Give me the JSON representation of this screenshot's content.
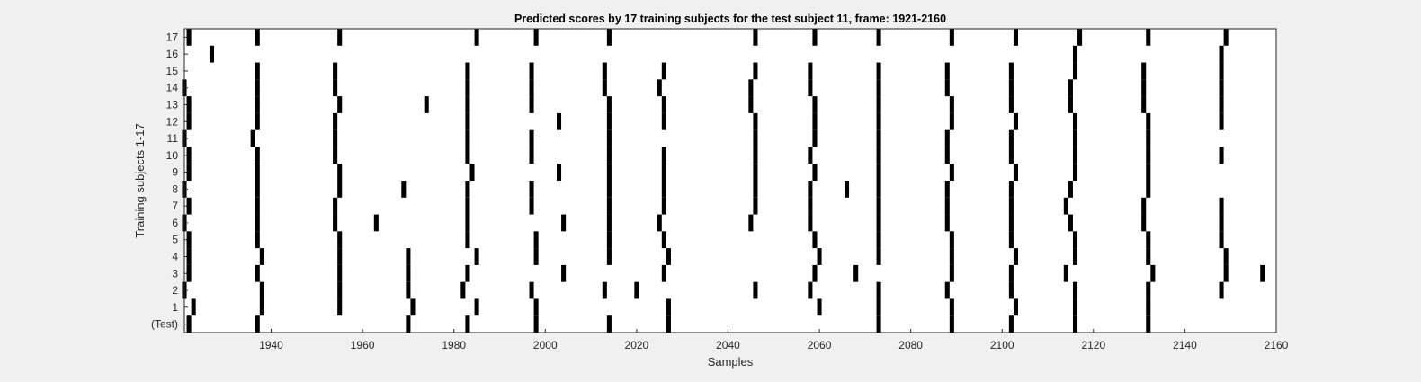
{
  "chart_data": {
    "type": "raster",
    "title": "Predicted scores by 17 training subjects for the test subject 11, frame: 1921-2160",
    "xlabel": "Samples",
    "ylabel": "Training subjects 1-17",
    "xlim": [
      1921,
      2160
    ],
    "xticks": [
      1940,
      1960,
      1980,
      2000,
      2020,
      2040,
      2060,
      2080,
      2100,
      2120,
      2140,
      2160
    ],
    "yticklabels": [
      "(Test)",
      "1",
      "2",
      "3",
      "4",
      "5",
      "6",
      "7",
      "8",
      "9",
      "10",
      "11",
      "12",
      "13",
      "14",
      "15",
      "16",
      "17"
    ],
    "bar_color": "#000000",
    "grid": false,
    "rows": [
      {
        "label": "(Test)",
        "events": [
          1922,
          1937,
          1970,
          1983,
          1998,
          2014,
          2027,
          2073,
          2089,
          2102,
          2116,
          2132
        ]
      },
      {
        "label": "1",
        "events": [
          1923,
          1938,
          1955,
          1971,
          1985,
          1998,
          2027,
          2060,
          2073,
          2089,
          2103,
          2116,
          2132
        ]
      },
      {
        "label": "2",
        "events": [
          1921,
          1938,
          1955,
          1970,
          1982,
          1997,
          2013,
          2020,
          2046,
          2058,
          2073,
          2088,
          2102,
          2116,
          2132,
          2148
        ]
      },
      {
        "label": "3",
        "events": [
          1922,
          1937,
          1955,
          1970,
          1983,
          2004,
          2026,
          2059,
          2068,
          2089,
          2102,
          2114,
          2133,
          2149,
          2157
        ]
      },
      {
        "label": "4",
        "events": [
          1922,
          1938,
          1955,
          1970,
          1985,
          1998,
          2014,
          2027,
          2060,
          2073,
          2089,
          2103,
          2116,
          2132,
          2149
        ]
      },
      {
        "label": "5",
        "events": [
          1922,
          1937,
          1955,
          1983,
          1998,
          2014,
          2026,
          2059,
          2073,
          2089,
          2102,
          2116,
          2132,
          2148
        ]
      },
      {
        "label": "6",
        "events": [
          1921,
          1937,
          1954,
          1963,
          1983,
          2004,
          2014,
          2025,
          2045,
          2058,
          2073,
          2088,
          2102,
          2115,
          2131,
          2148
        ]
      },
      {
        "label": "7",
        "events": [
          1922,
          1937,
          1954,
          1983,
          1997,
          2014,
          2026,
          2046,
          2058,
          2073,
          2088,
          2102,
          2114,
          2131,
          2148
        ]
      },
      {
        "label": "8",
        "events": [
          1921,
          1937,
          1955,
          1969,
          1983,
          1997,
          2014,
          2026,
          2046,
          2058,
          2066,
          2073,
          2088,
          2102,
          2115,
          2132
        ]
      },
      {
        "label": "9",
        "events": [
          1922,
          1937,
          1955,
          1984,
          2003,
          2014,
          2026,
          2046,
          2059,
          2073,
          2089,
          2103,
          2116,
          2132
        ]
      },
      {
        "label": "10",
        "events": [
          1922,
          1937,
          1954,
          1983,
          1997,
          2014,
          2026,
          2046,
          2058,
          2073,
          2088,
          2102,
          2116,
          2132,
          2148
        ]
      },
      {
        "label": "11",
        "events": [
          1921,
          1936,
          1954,
          1983,
          1997,
          2014,
          2046,
          2059,
          2073,
          2088,
          2102,
          2116,
          2132
        ]
      },
      {
        "label": "12",
        "events": [
          1922,
          1937,
          1954,
          1983,
          2003,
          2014,
          2026,
          2046,
          2059,
          2073,
          2089,
          2103,
          2116,
          2132,
          2148
        ]
      },
      {
        "label": "13",
        "events": [
          1922,
          1937,
          1955,
          1974,
          1983,
          1997,
          2014,
          2026,
          2045,
          2059,
          2073,
          2089,
          2102,
          2115,
          2131,
          2148
        ]
      },
      {
        "label": "14",
        "events": [
          1921,
          1937,
          1954,
          1983,
          1997,
          2013,
          2025,
          2045,
          2058,
          2073,
          2088,
          2102,
          2115,
          2131,
          2148
        ]
      },
      {
        "label": "15",
        "events": [
          1937,
          1954,
          1983,
          1997,
          2013,
          2026,
          2046,
          2058,
          2073,
          2088,
          2102,
          2116,
          2131,
          2148
        ]
      },
      {
        "label": "16",
        "events": [
          1927,
          2116,
          2148
        ]
      },
      {
        "label": "17",
        "events": [
          1922,
          1937,
          1955,
          1985,
          1998,
          2014,
          2046,
          2059,
          2073,
          2089,
          2103,
          2117,
          2132,
          2149
        ]
      }
    ]
  }
}
